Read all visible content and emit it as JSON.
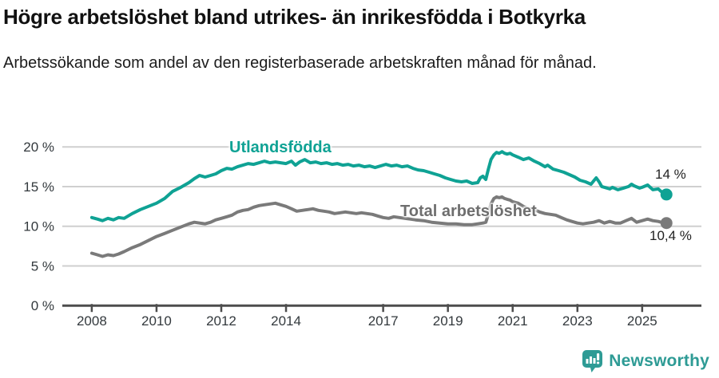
{
  "chart_data": {
    "type": "line",
    "title": "Högre arbetslöshet bland utrikes- än inrikesfödda i Botkyrka",
    "subtitle": "Arbetssökande som andel av den registerbaserade arbetskraften månad för månad.",
    "unit": "%",
    "grid": "horizontal",
    "legend_position": "inline-labels",
    "ylim": [
      0,
      20
    ],
    "xlim": [
      2007.09,
      2026.83
    ],
    "y_ticks": [
      {
        "value": 0,
        "label": "0 %"
      },
      {
        "value": 5,
        "label": "5 %"
      },
      {
        "value": 10,
        "label": "10 %"
      },
      {
        "value": 15,
        "label": "15 %"
      },
      {
        "value": 20,
        "label": "20 %"
      }
    ],
    "x_ticks": [
      {
        "value": 2008,
        "label": "2008"
      },
      {
        "value": 2010,
        "label": "2010"
      },
      {
        "value": 2012,
        "label": "2012"
      },
      {
        "value": 2014,
        "label": "2014"
      },
      {
        "value": 2017,
        "label": "2017"
      },
      {
        "value": 2019,
        "label": "2019"
      },
      {
        "value": 2021,
        "label": "2021"
      },
      {
        "value": 2023,
        "label": "2023"
      },
      {
        "value": 2025,
        "label": "2025"
      }
    ],
    "series": [
      {
        "name": "Utlandsfödda",
        "color": "#0FA294",
        "end_label": "14 %",
        "end_value": 14.0,
        "points": [
          [
            2008.0,
            11.1
          ],
          [
            2008.17,
            10.9
          ],
          [
            2008.33,
            10.7
          ],
          [
            2008.5,
            11.0
          ],
          [
            2008.67,
            10.8
          ],
          [
            2008.83,
            11.1
          ],
          [
            2009.0,
            11.0
          ],
          [
            2009.25,
            11.6
          ],
          [
            2009.5,
            12.1
          ],
          [
            2009.75,
            12.5
          ],
          [
            2010.0,
            12.9
          ],
          [
            2010.25,
            13.5
          ],
          [
            2010.5,
            14.4
          ],
          [
            2010.75,
            14.9
          ],
          [
            2011.0,
            15.5
          ],
          [
            2011.17,
            16.0
          ],
          [
            2011.33,
            16.4
          ],
          [
            2011.5,
            16.2
          ],
          [
            2011.67,
            16.4
          ],
          [
            2011.83,
            16.6
          ],
          [
            2012.0,
            17.0
          ],
          [
            2012.17,
            17.3
          ],
          [
            2012.33,
            17.2
          ],
          [
            2012.5,
            17.5
          ],
          [
            2012.67,
            17.7
          ],
          [
            2012.83,
            17.9
          ],
          [
            2013.0,
            17.8
          ],
          [
            2013.17,
            18.0
          ],
          [
            2013.33,
            18.2
          ],
          [
            2013.5,
            18.0
          ],
          [
            2013.67,
            18.1
          ],
          [
            2013.83,
            18.0
          ],
          [
            2014.0,
            17.9
          ],
          [
            2014.17,
            18.2
          ],
          [
            2014.29,
            17.7
          ],
          [
            2014.42,
            18.1
          ],
          [
            2014.58,
            18.4
          ],
          [
            2014.75,
            18.0
          ],
          [
            2014.92,
            18.1
          ],
          [
            2015.08,
            17.9
          ],
          [
            2015.25,
            18.0
          ],
          [
            2015.42,
            17.8
          ],
          [
            2015.58,
            17.9
          ],
          [
            2015.75,
            17.7
          ],
          [
            2015.92,
            17.8
          ],
          [
            2016.08,
            17.6
          ],
          [
            2016.25,
            17.7
          ],
          [
            2016.42,
            17.5
          ],
          [
            2016.58,
            17.6
          ],
          [
            2016.75,
            17.4
          ],
          [
            2016.92,
            17.6
          ],
          [
            2017.08,
            17.8
          ],
          [
            2017.25,
            17.6
          ],
          [
            2017.42,
            17.7
          ],
          [
            2017.58,
            17.5
          ],
          [
            2017.75,
            17.6
          ],
          [
            2017.92,
            17.3
          ],
          [
            2018.08,
            17.1
          ],
          [
            2018.25,
            17.0
          ],
          [
            2018.42,
            16.8
          ],
          [
            2018.58,
            16.6
          ],
          [
            2018.75,
            16.4
          ],
          [
            2018.92,
            16.1
          ],
          [
            2019.08,
            15.9
          ],
          [
            2019.25,
            15.7
          ],
          [
            2019.42,
            15.6
          ],
          [
            2019.58,
            15.7
          ],
          [
            2019.75,
            15.4
          ],
          [
            2019.92,
            15.5
          ],
          [
            2020.0,
            16.1
          ],
          [
            2020.08,
            16.3
          ],
          [
            2020.17,
            15.9
          ],
          [
            2020.25,
            17.2
          ],
          [
            2020.33,
            18.4
          ],
          [
            2020.42,
            19.0
          ],
          [
            2020.5,
            19.3
          ],
          [
            2020.58,
            19.2
          ],
          [
            2020.67,
            19.4
          ],
          [
            2020.75,
            19.2
          ],
          [
            2020.83,
            19.1
          ],
          [
            2020.92,
            19.2
          ],
          [
            2021.0,
            19.0
          ],
          [
            2021.17,
            18.7
          ],
          [
            2021.33,
            18.4
          ],
          [
            2021.5,
            18.6
          ],
          [
            2021.67,
            18.2
          ],
          [
            2021.83,
            17.9
          ],
          [
            2022.0,
            17.5
          ],
          [
            2022.08,
            17.7
          ],
          [
            2022.25,
            17.2
          ],
          [
            2022.42,
            17.0
          ],
          [
            2022.58,
            16.8
          ],
          [
            2022.75,
            16.5
          ],
          [
            2022.92,
            16.2
          ],
          [
            2023.08,
            15.8
          ],
          [
            2023.25,
            15.6
          ],
          [
            2023.42,
            15.3
          ],
          [
            2023.5,
            15.7
          ],
          [
            2023.58,
            16.1
          ],
          [
            2023.67,
            15.6
          ],
          [
            2023.75,
            15.0
          ],
          [
            2023.92,
            14.8
          ],
          [
            2024.0,
            14.7
          ],
          [
            2024.08,
            14.9
          ],
          [
            2024.25,
            14.6
          ],
          [
            2024.42,
            14.8
          ],
          [
            2024.58,
            15.0
          ],
          [
            2024.67,
            15.3
          ],
          [
            2024.75,
            15.1
          ],
          [
            2024.92,
            14.8
          ],
          [
            2025.0,
            14.9
          ],
          [
            2025.17,
            15.2
          ],
          [
            2025.33,
            14.6
          ],
          [
            2025.5,
            14.7
          ],
          [
            2025.58,
            14.4
          ],
          [
            2025.75,
            14.0
          ]
        ]
      },
      {
        "name": "Total arbetslöshet",
        "color": "#7a7a7a",
        "end_label": "10,4 %",
        "end_value": 10.4,
        "points": [
          [
            2008.0,
            6.6
          ],
          [
            2008.17,
            6.4
          ],
          [
            2008.33,
            6.2
          ],
          [
            2008.5,
            6.4
          ],
          [
            2008.67,
            6.3
          ],
          [
            2008.83,
            6.5
          ],
          [
            2009.0,
            6.8
          ],
          [
            2009.25,
            7.3
          ],
          [
            2009.5,
            7.7
          ],
          [
            2009.75,
            8.2
          ],
          [
            2010.0,
            8.7
          ],
          [
            2010.25,
            9.1
          ],
          [
            2010.5,
            9.5
          ],
          [
            2010.75,
            9.9
          ],
          [
            2011.0,
            10.3
          ],
          [
            2011.17,
            10.5
          ],
          [
            2011.33,
            10.4
          ],
          [
            2011.5,
            10.3
          ],
          [
            2011.67,
            10.5
          ],
          [
            2011.83,
            10.8
          ],
          [
            2012.0,
            11.0
          ],
          [
            2012.17,
            11.2
          ],
          [
            2012.33,
            11.4
          ],
          [
            2012.5,
            11.8
          ],
          [
            2012.67,
            12.0
          ],
          [
            2012.83,
            12.1
          ],
          [
            2013.0,
            12.4
          ],
          [
            2013.17,
            12.6
          ],
          [
            2013.33,
            12.7
          ],
          [
            2013.5,
            12.8
          ],
          [
            2013.67,
            12.9
          ],
          [
            2013.83,
            12.7
          ],
          [
            2014.0,
            12.5
          ],
          [
            2014.17,
            12.2
          ],
          [
            2014.33,
            11.9
          ],
          [
            2014.5,
            12.0
          ],
          [
            2014.67,
            12.1
          ],
          [
            2014.83,
            12.2
          ],
          [
            2015.0,
            12.0
          ],
          [
            2015.17,
            11.9
          ],
          [
            2015.33,
            11.8
          ],
          [
            2015.5,
            11.6
          ],
          [
            2015.67,
            11.7
          ],
          [
            2015.83,
            11.8
          ],
          [
            2016.0,
            11.7
          ],
          [
            2016.17,
            11.6
          ],
          [
            2016.33,
            11.7
          ],
          [
            2016.5,
            11.6
          ],
          [
            2016.67,
            11.5
          ],
          [
            2016.83,
            11.3
          ],
          [
            2017.0,
            11.1
          ],
          [
            2017.17,
            11.0
          ],
          [
            2017.33,
            11.2
          ],
          [
            2017.5,
            11.1
          ],
          [
            2017.67,
            11.0
          ],
          [
            2017.83,
            10.9
          ],
          [
            2018.0,
            10.8
          ],
          [
            2018.25,
            10.7
          ],
          [
            2018.5,
            10.5
          ],
          [
            2018.75,
            10.4
          ],
          [
            2019.0,
            10.3
          ],
          [
            2019.25,
            10.3
          ],
          [
            2019.5,
            10.2
          ],
          [
            2019.75,
            10.2
          ],
          [
            2019.92,
            10.3
          ],
          [
            2020.08,
            10.4
          ],
          [
            2020.17,
            10.5
          ],
          [
            2020.25,
            11.5
          ],
          [
            2020.33,
            12.8
          ],
          [
            2020.42,
            13.5
          ],
          [
            2020.5,
            13.7
          ],
          [
            2020.58,
            13.6
          ],
          [
            2020.67,
            13.7
          ],
          [
            2020.75,
            13.5
          ],
          [
            2020.83,
            13.4
          ],
          [
            2020.92,
            13.3
          ],
          [
            2021.0,
            13.1
          ],
          [
            2021.17,
            12.9
          ],
          [
            2021.33,
            12.5
          ],
          [
            2021.5,
            12.2
          ],
          [
            2021.67,
            12.1
          ],
          [
            2021.83,
            11.8
          ],
          [
            2022.0,
            11.6
          ],
          [
            2022.17,
            11.5
          ],
          [
            2022.33,
            11.4
          ],
          [
            2022.5,
            11.1
          ],
          [
            2022.67,
            10.8
          ],
          [
            2022.83,
            10.6
          ],
          [
            2023.0,
            10.4
          ],
          [
            2023.17,
            10.3
          ],
          [
            2023.33,
            10.4
          ],
          [
            2023.5,
            10.5
          ],
          [
            2023.67,
            10.7
          ],
          [
            2023.83,
            10.4
          ],
          [
            2024.0,
            10.6
          ],
          [
            2024.17,
            10.4
          ],
          [
            2024.33,
            10.4
          ],
          [
            2024.5,
            10.7
          ],
          [
            2024.67,
            11.0
          ],
          [
            2024.83,
            10.5
          ],
          [
            2025.0,
            10.7
          ],
          [
            2025.17,
            10.9
          ],
          [
            2025.33,
            10.7
          ],
          [
            2025.5,
            10.6
          ],
          [
            2025.67,
            10.4
          ],
          [
            2025.75,
            10.4
          ]
        ]
      }
    ]
  },
  "footer": {
    "brand": "Newsworthy",
    "brand_color": "#2E9B95"
  }
}
